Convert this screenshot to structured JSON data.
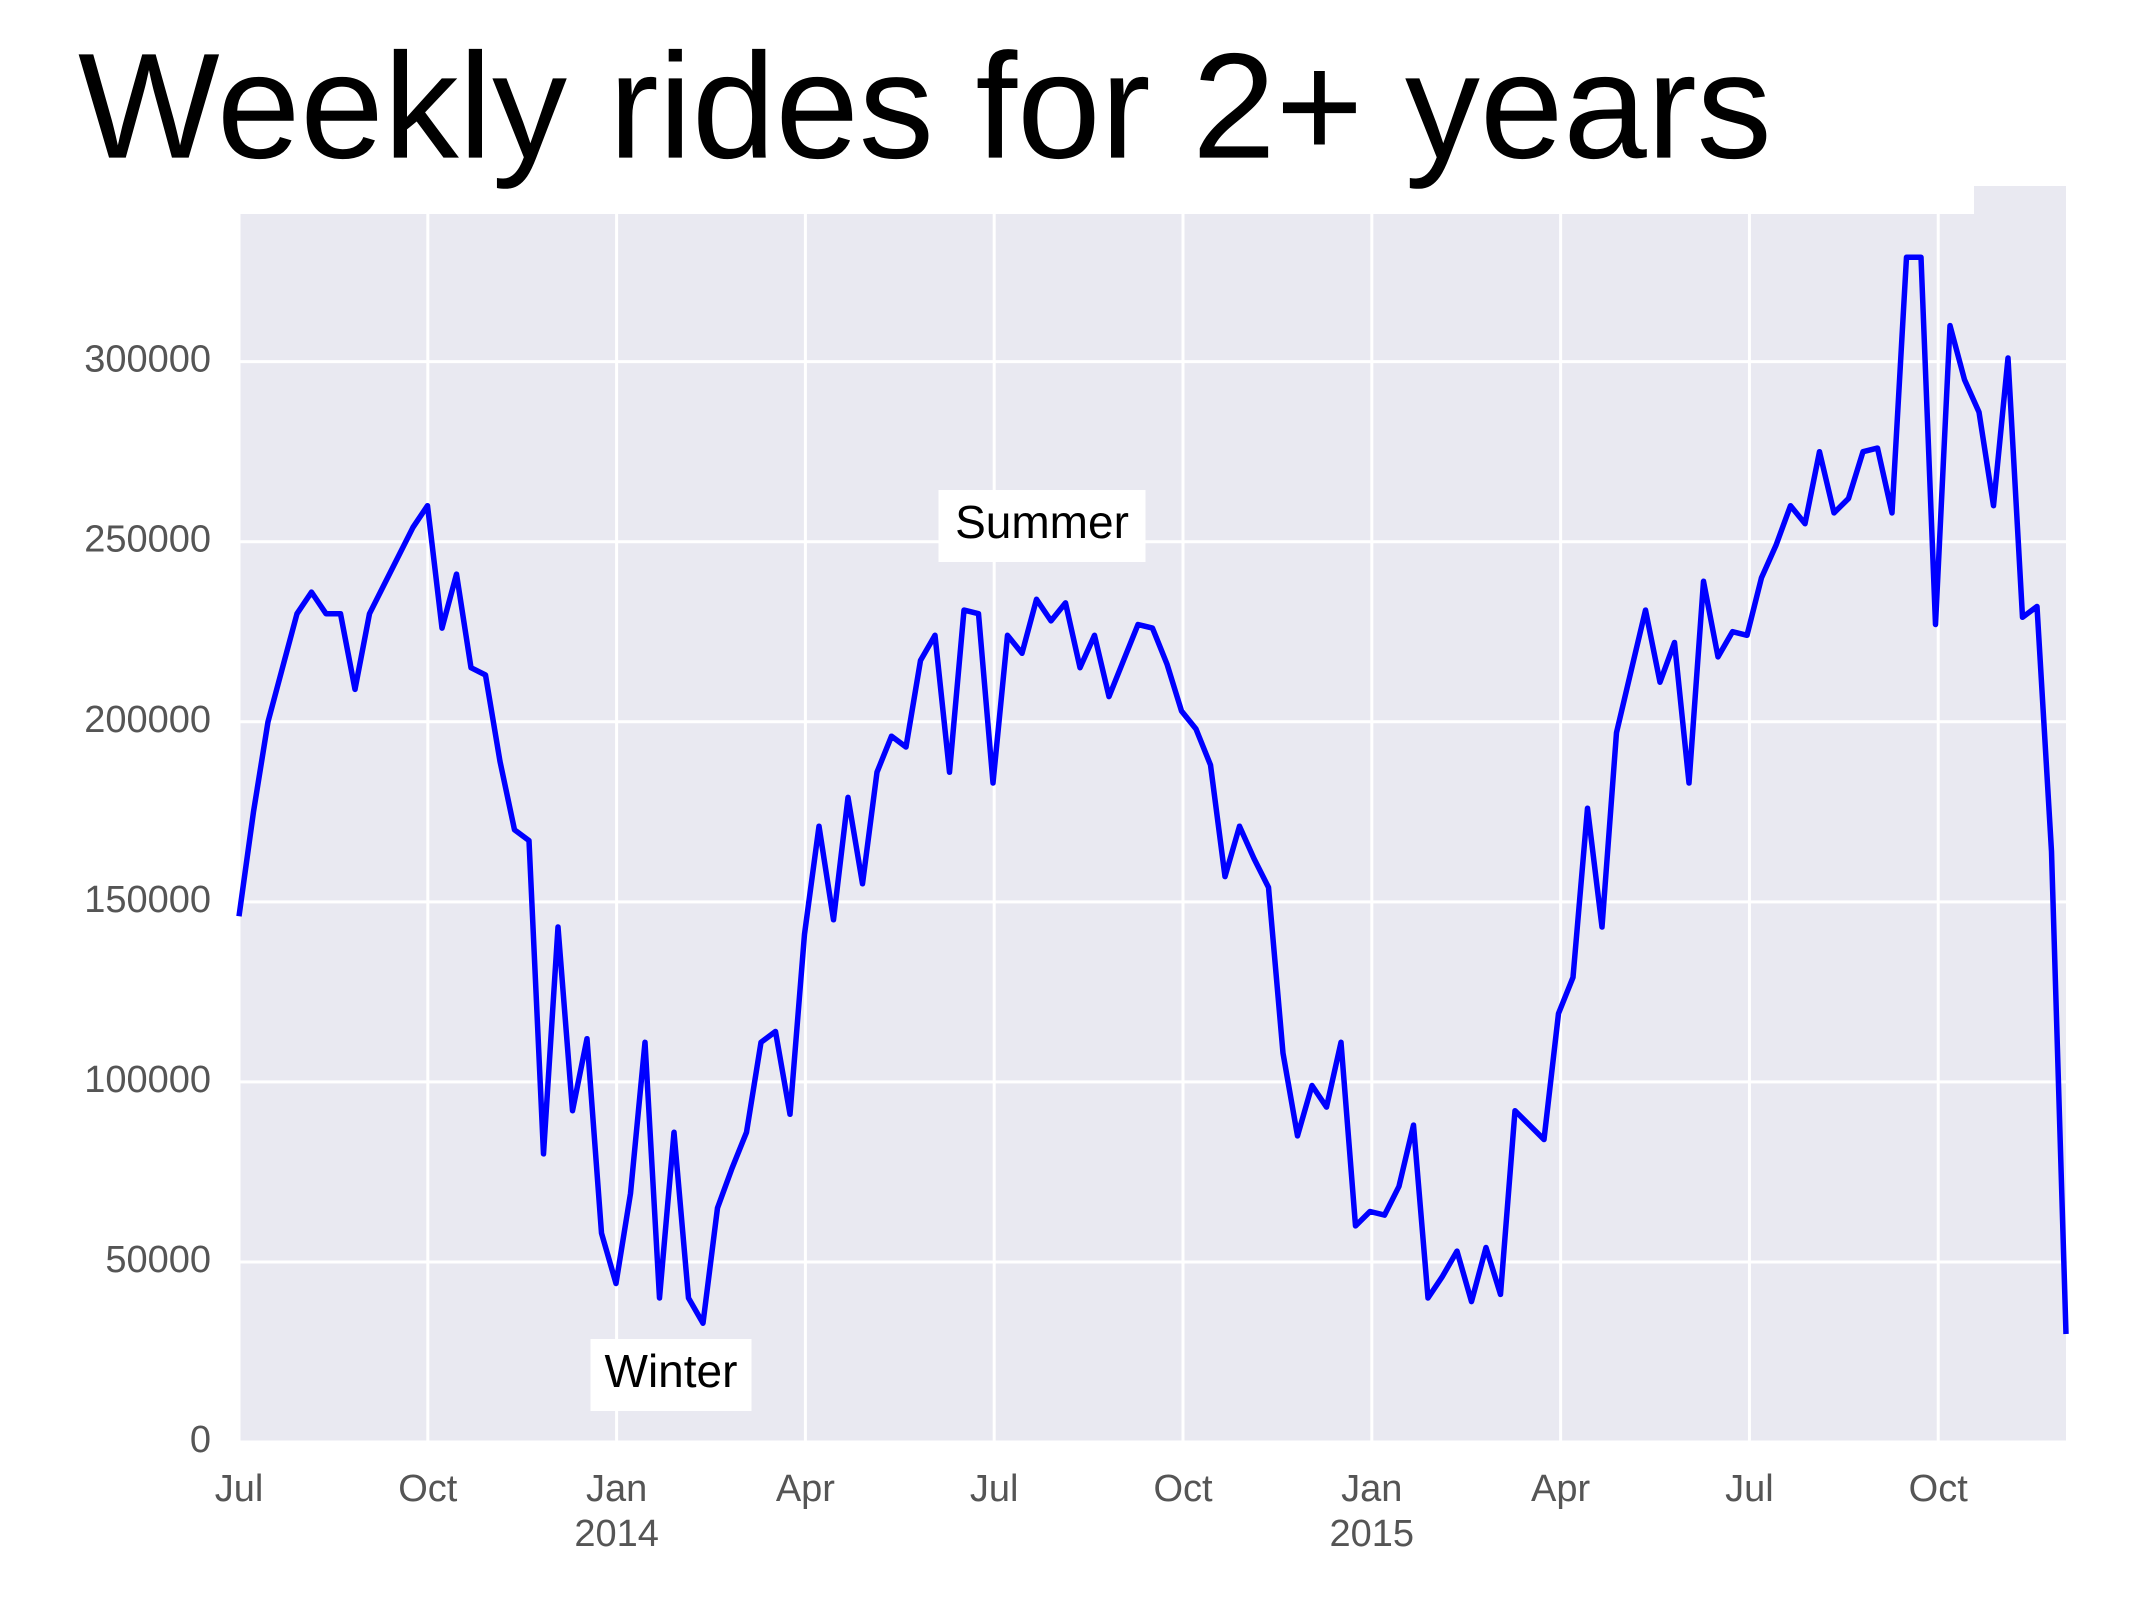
{
  "chart_data": {
    "type": "line",
    "title": "Weekly rides for 2+ years",
    "color": "#0000ff",
    "grid": true,
    "xlim": [
      2013.5,
      2015.9192
    ],
    "ylim": [
      0,
      341000
    ],
    "yticks": [
      0,
      50000,
      100000,
      150000,
      200000,
      250000,
      300000
    ],
    "xticks": [
      {
        "value": 2013.5,
        "label": "Jul"
      },
      {
        "value": 2013.75,
        "label": "Oct"
      },
      {
        "value": 2014,
        "label": "Jan"
      },
      {
        "value": 2014.25,
        "label": "Apr"
      },
      {
        "value": 2014.5,
        "label": "Jul"
      },
      {
        "value": 2014.75,
        "label": "Oct"
      },
      {
        "value": 2015,
        "label": "Jan"
      },
      {
        "value": 2015.25,
        "label": "Apr"
      },
      {
        "value": 2015.5,
        "label": "Jul"
      },
      {
        "value": 2015.75,
        "label": "Oct"
      }
    ],
    "xticks_year": [
      2014,
      2015
    ],
    "annotations": [
      "Summer",
      "Winter"
    ],
    "x": [
      2013.5,
      2013.5192,
      2013.5384,
      2013.5576,
      2013.5768,
      2013.596,
      2013.6152,
      2013.6344,
      2013.6536,
      2013.6728,
      2013.692,
      2013.7112,
      2013.7304,
      2013.7496,
      2013.7688,
      2013.788,
      2013.8072,
      2013.8264,
      2013.8456,
      2013.8648,
      2013.884,
      2013.9032,
      2013.9224,
      2013.9416,
      2013.9608,
      2013.98,
      2013.9992,
      2014.0184,
      2014.0376,
      2014.0568,
      2014.076,
      2014.0952,
      2014.1144,
      2014.1336,
      2014.1528,
      2014.172,
      2014.1912,
      2014.2104,
      2014.2296,
      2014.2488,
      2014.268,
      2014.2872,
      2014.3064,
      2014.3256,
      2014.3448,
      2014.364,
      2014.3832,
      2014.4024,
      2014.4216,
      2014.4408,
      2014.46,
      2014.4792,
      2014.4984,
      2014.5176,
      2014.5368,
      2014.556,
      2014.5752,
      2014.5944,
      2014.6136,
      2014.6328,
      2014.652,
      2014.6712,
      2014.6904,
      2014.7096,
      2014.7288,
      2014.748,
      2014.7672,
      2014.7864,
      2014.8056,
      2014.8248,
      2014.844,
      2014.8632,
      2014.8824,
      2014.9016,
      2014.9208,
      2014.94,
      2014.9592,
      2014.9784,
      2014.9976,
      2015.0168,
      2015.036,
      2015.0552,
      2015.0744,
      2015.0936,
      2015.1128,
      2015.132,
      2015.1512,
      2015.1704,
      2015.1896,
      2015.2088,
      2015.228,
      2015.2472,
      2015.2664,
      2015.2856,
      2015.3048,
      2015.324,
      2015.3432,
      2015.3624,
      2015.3816,
      2015.4008,
      2015.42,
      2015.4392,
      2015.4584,
      2015.4776,
      2015.4968,
      2015.516,
      2015.5352,
      2015.5544,
      2015.5736,
      2015.5928,
      2015.612,
      2015.6312,
      2015.6504,
      2015.6696,
      2015.6888,
      2015.708,
      2015.7272,
      2015.7464,
      2015.7656,
      2015.7848,
      2015.804,
      2015.8232,
      2015.8424,
      2015.8616,
      2015.8808,
      2015.9,
      2015.9192
    ],
    "values": [
      146000,
      175000,
      200000,
      215000,
      230000,
      236000,
      230000,
      230000,
      209000,
      230000,
      238000,
      246000,
      254000,
      260000,
      226000,
      241000,
      215000,
      213000,
      189000,
      170000,
      167000,
      80000,
      143000,
      92000,
      112000,
      58000,
      44000,
      69000,
      111000,
      40000,
      86000,
      40000,
      33000,
      65000,
      76000,
      86000,
      111000,
      114000,
      91000,
      141000,
      171000,
      145000,
      179000,
      155000,
      186000,
      196000,
      193000,
      217000,
      224000,
      186000,
      231000,
      230000,
      183000,
      224000,
      219000,
      234000,
      228000,
      233000,
      215000,
      224000,
      207000,
      217000,
      227000,
      226000,
      216000,
      203000,
      198000,
      188000,
      157000,
      171000,
      162000,
      154000,
      108000,
      85000,
      99000,
      93000,
      111000,
      60000,
      64000,
      63000,
      71000,
      88000,
      40000,
      46000,
      53000,
      39000,
      54000,
      41000,
      92000,
      88000,
      84000,
      119000,
      129000,
      176000,
      143000,
      197000,
      214000,
      231000,
      211000,
      222000,
      183000,
      239000,
      218000,
      225000,
      224000,
      240000,
      249000,
      260000,
      255000,
      275000,
      258000,
      262000,
      275000,
      276000,
      258000,
      329000,
      329000,
      227000,
      310000,
      295000,
      286000,
      260000,
      301000,
      229000,
      232000,
      164000,
      30000
    ]
  }
}
